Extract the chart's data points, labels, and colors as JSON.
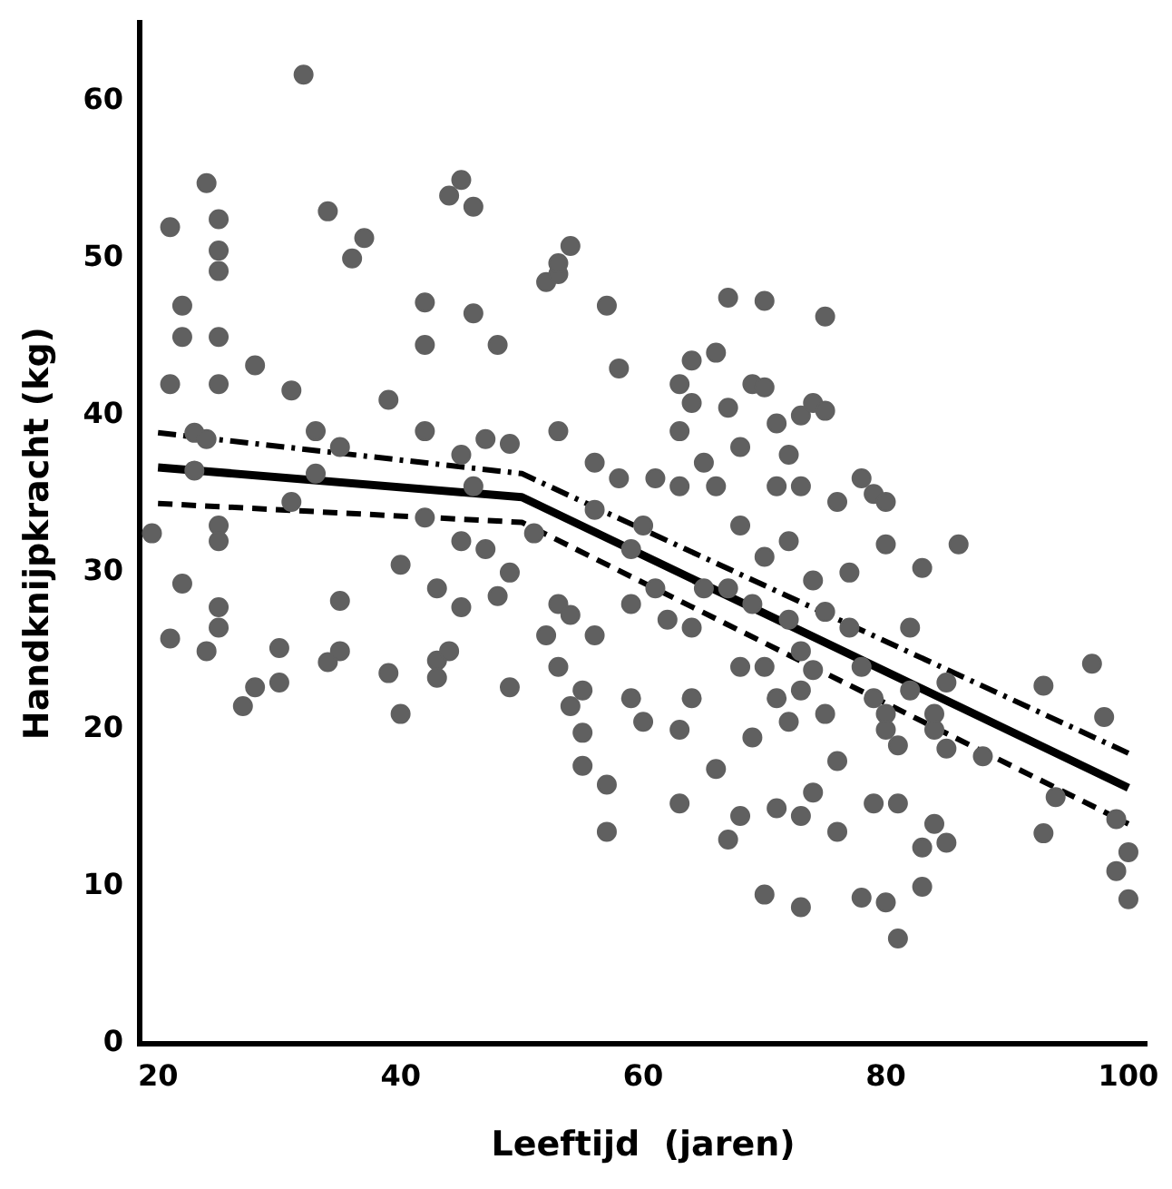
{
  "chart_data": {
    "type": "scatter",
    "xlabel": "Leeftijd  (jaren)",
    "ylabel": "Handknijpkracht (kg)",
    "xlim": [
      18.5,
      101.5
    ],
    "ylim": [
      0,
      65
    ],
    "xticks": [
      20,
      40,
      60,
      80,
      100
    ],
    "yticks": [
      0,
      10,
      20,
      30,
      40,
      50,
      60
    ],
    "grid": false,
    "legend": false,
    "series": [
      {
        "type": "scatter",
        "marker": "circle",
        "color": "#606060",
        "x": [
          19.5,
          21,
          21,
          21,
          22,
          22,
          22,
          23,
          23,
          24,
          24,
          24,
          25,
          25,
          25,
          25,
          25,
          25,
          25,
          25,
          25,
          27,
          28,
          28,
          30,
          30,
          31,
          31,
          32,
          33,
          33,
          34,
          34,
          35,
          35,
          35,
          36,
          37,
          39,
          39,
          40,
          40,
          42,
          42,
          42,
          42,
          43,
          43,
          44,
          43,
          44,
          45,
          45,
          45,
          45,
          46,
          46,
          46,
          47,
          47,
          48,
          48,
          49,
          49,
          49,
          51,
          52,
          53,
          53,
          54,
          53,
          53,
          52,
          53,
          54,
          54,
          55,
          55,
          55,
          56,
          56,
          56,
          57,
          57,
          57,
          58,
          58,
          59,
          59,
          59,
          60,
          60,
          61,
          61,
          62,
          63,
          63,
          63,
          63,
          63,
          64,
          64,
          64,
          64,
          65,
          65,
          66,
          66,
          66,
          67,
          67,
          67,
          67,
          68,
          68,
          68,
          68,
          69,
          69,
          69,
          70,
          70,
          70,
          70,
          70,
          71,
          71,
          71,
          71,
          72,
          72,
          72,
          72,
          73,
          73,
          73,
          73,
          73,
          73,
          74,
          74,
          74,
          74,
          75,
          75,
          75,
          75,
          76,
          76,
          76,
          77,
          77,
          78,
          78,
          78,
          79,
          79,
          79,
          80,
          80,
          80,
          80,
          80,
          81,
          81,
          81,
          82,
          82,
          83,
          83,
          83,
          84,
          84,
          84,
          85,
          85,
          85,
          86,
          88,
          93,
          93,
          94,
          97,
          98,
          99,
          99,
          100,
          100
        ],
        "values": [
          32.5,
          52,
          42,
          25.8,
          29.3,
          47,
          45,
          36.5,
          38.9,
          54.8,
          38.5,
          25,
          52.5,
          50.5,
          49.2,
          45,
          42,
          33,
          32,
          27.8,
          26.5,
          21.5,
          43.2,
          22.7,
          25.2,
          23,
          41.6,
          34.5,
          61.7,
          36.3,
          39,
          24.3,
          53,
          28.2,
          25,
          38,
          50,
          51.3,
          41,
          23.6,
          30.5,
          21,
          47.2,
          44.5,
          39,
          33.5,
          24.4,
          29,
          25,
          23.3,
          54,
          55,
          32,
          37.5,
          27.8,
          53.3,
          46.5,
          35.5,
          38.5,
          31.5,
          44.5,
          28.5,
          38.2,
          22.7,
          30,
          32.5,
          48.5,
          49,
          49.7,
          50.8,
          39,
          28,
          26,
          24,
          21.5,
          27.3,
          17.7,
          19.8,
          22.5,
          37,
          34,
          26,
          13.5,
          16.5,
          47,
          43,
          36,
          31.5,
          28,
          22,
          20.5,
          33,
          36,
          29,
          27,
          42,
          39,
          35.5,
          15.3,
          20,
          43.5,
          40.8,
          26.5,
          22,
          37,
          29,
          44,
          35.5,
          17.5,
          47.5,
          40.5,
          29,
          13,
          38,
          14.5,
          24,
          33,
          42,
          28,
          19.5,
          47.3,
          41.8,
          31,
          9.5,
          24,
          39.5,
          35.5,
          15,
          22,
          37.5,
          32,
          27,
          20.5,
          40,
          35.5,
          14.5,
          25,
          22.5,
          8.7,
          40.8,
          29.5,
          16,
          23.8,
          46.3,
          40.3,
          27.5,
          21,
          18,
          13.5,
          34.5,
          26.5,
          30,
          36,
          24,
          9.3,
          35,
          22,
          15.3,
          34.5,
          31.8,
          21,
          20,
          9,
          19,
          15.3,
          6.7,
          26.5,
          22.5,
          30.3,
          10,
          12.5,
          21,
          14,
          20,
          12.8,
          18.8,
          23,
          31.8,
          18.3,
          22.8,
          13.4,
          15.7,
          24.2,
          20.8,
          14.3,
          11,
          12.2,
          9.2
        ]
      },
      {
        "type": "line",
        "color": "#000000",
        "line_style": "solid",
        "marker": "none",
        "x": [
          20,
          50,
          100
        ],
        "values": [
          36.7,
          34.8,
          16.3
        ]
      },
      {
        "type": "line",
        "color": "#000000",
        "line_style": "dotted",
        "marker": "none",
        "x": [
          20,
          50,
          100
        ],
        "values": [
          38.9,
          36.3,
          18.5
        ]
      },
      {
        "type": "line",
        "color": "#000000",
        "line_style": "dashed",
        "marker": "none",
        "x": [
          20,
          50,
          100
        ],
        "values": [
          34.4,
          33.2,
          14
        ]
      }
    ]
  }
}
